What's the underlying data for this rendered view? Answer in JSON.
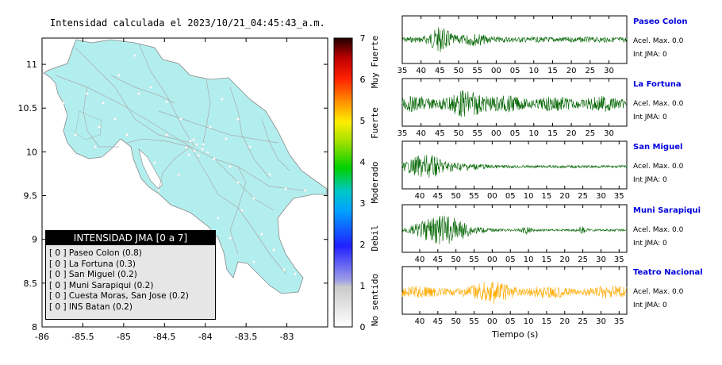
{
  "title": "Intensidad calculada el 2023/10/21_04:45:43_a.m.",
  "map": {
    "x_ticks": [
      "-86",
      "-85.5",
      "-85",
      "-84.5",
      "-84",
      "-83.5",
      "-83"
    ],
    "y_ticks": [
      "8",
      "8.5",
      "9",
      "9.5",
      "10",
      "10.5",
      "11"
    ],
    "land_color": "#b3eeee",
    "road_color": "#aaaaaa"
  },
  "legend": {
    "title": "INTENSIDAD JMA [0 a 7]",
    "items": [
      {
        "text": "[ 0 ]  Paseo Colon (0.8)"
      },
      {
        "text": "[ 0 ]  La Fortuna (0.3)"
      },
      {
        "text": "[ 0 ]  San Miguel (0.2)"
      },
      {
        "text": "[ 0 ]  Muni Sarapiqui (0.2)"
      },
      {
        "text": "[ 0 ]  Cuesta Moras, San Jose (0.2)"
      },
      {
        "text": "[ 0 ]  INS Batan (0.2)"
      }
    ]
  },
  "scale": {
    "ticks": [
      "0",
      "1",
      "2",
      "3",
      "4",
      "5",
      "6",
      "7"
    ],
    "categories": [
      "No sentido",
      "Debil",
      "Moderado",
      "Fuerte",
      "Muy Fuerte"
    ]
  },
  "stations": [
    {
      "name": "Paseo Colon",
      "acc": "Acel. Max. 0.0",
      "int": "Int JMA: 0",
      "color": "#006400",
      "ticks": [
        "35",
        "40",
        "45",
        "50",
        "55",
        "00",
        "05",
        "10",
        "15",
        "20",
        "25",
        "30"
      ]
    },
    {
      "name": "La Fortuna",
      "acc": "Acel. Max. 0.0",
      "int": "Int JMA: 0",
      "color": "#006400",
      "ticks": [
        "35",
        "40",
        "45",
        "50",
        "55",
        "00",
        "05",
        "10",
        "15",
        "20",
        "25",
        "30"
      ]
    },
    {
      "name": "San Miguel",
      "acc": "Acel. Max. 0.0",
      "int": "Int JMA: 0",
      "color": "#006400",
      "ticks": [
        "40",
        "45",
        "50",
        "55",
        "00",
        "05",
        "10",
        "15",
        "20",
        "25",
        "30",
        "35"
      ]
    },
    {
      "name": "Muni Sarapiqui",
      "acc": "Acel. Max. 0.0",
      "int": "Int JMA: 0",
      "color": "#006400",
      "ticks": [
        "40",
        "45",
        "50",
        "55",
        "00",
        "05",
        "10",
        "15",
        "20",
        "25",
        "30",
        "35"
      ]
    },
    {
      "name": "Teatro Nacional",
      "acc": "Acel. Max. 0.0",
      "int": "Int JMA: 0",
      "color": "#ffaa00",
      "ticks": [
        "40",
        "45",
        "50",
        "55",
        "00",
        "05",
        "10",
        "15",
        "20",
        "25",
        "30",
        "35"
      ]
    }
  ],
  "time_label": "Tiempo (s)",
  "chart_data": [
    {
      "type": "map",
      "xlim": [
        -86,
        -82.5
      ],
      "ylim": [
        8,
        11.3
      ],
      "x_ticks": [
        -86,
        -85.5,
        -85,
        -84.5,
        -84,
        -83.5,
        -83
      ],
      "y_ticks": [
        8,
        8.5,
        9,
        9.5,
        10,
        10.5,
        11
      ]
    },
    {
      "type": "colorbar",
      "range": [
        0,
        7
      ],
      "labels": [
        "No sentido",
        "Debil",
        "Moderado",
        "Fuerte",
        "Muy Fuerte"
      ]
    },
    {
      "type": "line",
      "series": [
        {
          "name": "Paseo Colon",
          "peak_tick": "45"
        },
        {
          "name": "La Fortuna",
          "peak_tick": "45"
        },
        {
          "name": "San Miguel",
          "peak_tick": "45"
        },
        {
          "name": "Muni Sarapiqui",
          "peak_tick": "45"
        },
        {
          "name": "Teatro Nacional",
          "peak_tick": "55"
        }
      ],
      "xlabel": "Tiempo (s)"
    }
  ]
}
